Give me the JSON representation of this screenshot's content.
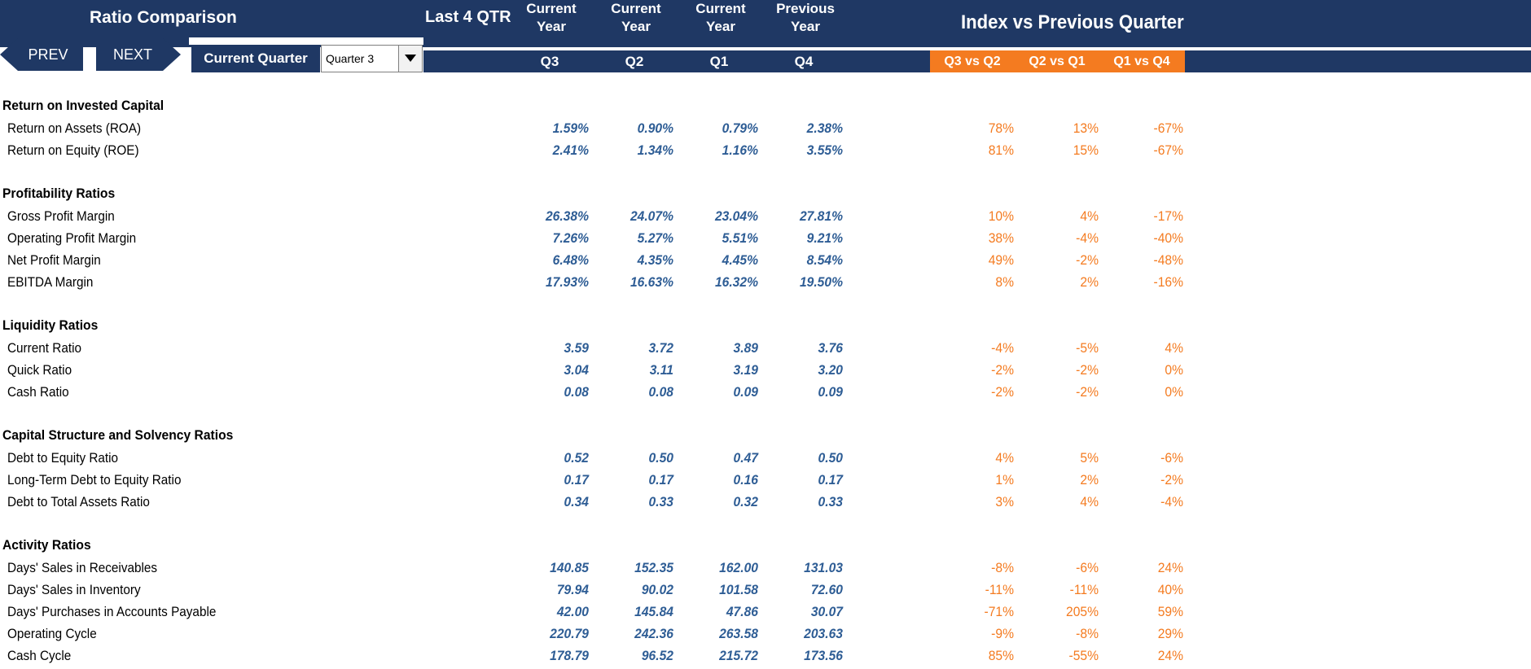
{
  "header": {
    "title": "Ratio Comparison",
    "last4": "Last 4 QTR",
    "col_heads": [
      {
        "line1": "Current",
        "line2": "Year"
      },
      {
        "line1": "Current",
        "line2": "Year"
      },
      {
        "line1": "Current",
        "line2": "Year"
      },
      {
        "line1": "Previous",
        "line2": "Year"
      }
    ],
    "quarters": [
      "Q3",
      "Q2",
      "Q1",
      "Q4"
    ],
    "index_title": "Index vs Previous Quarter",
    "index_heads": [
      "Q3 vs Q2",
      "Q2 vs Q1",
      "Q1 vs Q4"
    ]
  },
  "nav": {
    "prev_label": "PREV",
    "next_label": "NEXT",
    "current_quarter_label": "Current Quarter",
    "quarter_select_value": "Quarter 3"
  },
  "colors": {
    "navy": "#1f3864",
    "orange": "#f47b20",
    "value_blue": "#2e5d95"
  },
  "sections": [
    {
      "title": "Return on Invested Capital",
      "rows": [
        {
          "label": "Return on Assets (ROA)",
          "values": [
            "1.59%",
            "0.90%",
            "0.79%",
            "2.38%"
          ],
          "index": [
            "78%",
            "13%",
            "-67%"
          ]
        },
        {
          "label": "Return on Equity (ROE)",
          "values": [
            "2.41%",
            "1.34%",
            "1.16%",
            "3.55%"
          ],
          "index": [
            "81%",
            "15%",
            "-67%"
          ]
        }
      ]
    },
    {
      "title": "Profitability Ratios",
      "rows": [
        {
          "label": "Gross Profit Margin",
          "values": [
            "26.38%",
            "24.07%",
            "23.04%",
            "27.81%"
          ],
          "index": [
            "10%",
            "4%",
            "-17%"
          ]
        },
        {
          "label": "Operating Profit Margin",
          "values": [
            "7.26%",
            "5.27%",
            "5.51%",
            "9.21%"
          ],
          "index": [
            "38%",
            "-4%",
            "-40%"
          ]
        },
        {
          "label": "Net Profit Margin",
          "values": [
            "6.48%",
            "4.35%",
            "4.45%",
            "8.54%"
          ],
          "index": [
            "49%",
            "-2%",
            "-48%"
          ]
        },
        {
          "label": "EBITDA Margin",
          "values": [
            "17.93%",
            "16.63%",
            "16.32%",
            "19.50%"
          ],
          "index": [
            "8%",
            "2%",
            "-16%"
          ]
        }
      ]
    },
    {
      "title": "Liquidity Ratios",
      "rows": [
        {
          "label": "Current Ratio",
          "values": [
            "3.59",
            "3.72",
            "3.89",
            "3.76"
          ],
          "index": [
            "-4%",
            "-5%",
            "4%"
          ]
        },
        {
          "label": "Quick Ratio",
          "values": [
            "3.04",
            "3.11",
            "3.19",
            "3.20"
          ],
          "index": [
            "-2%",
            "-2%",
            "0%"
          ]
        },
        {
          "label": "Cash Ratio",
          "values": [
            "0.08",
            "0.08",
            "0.09",
            "0.09"
          ],
          "index": [
            "-2%",
            "-2%",
            "0%"
          ]
        }
      ]
    },
    {
      "title": "Capital Structure and Solvency Ratios",
      "rows": [
        {
          "label": "Debt to Equity Ratio",
          "values": [
            "0.52",
            "0.50",
            "0.47",
            "0.50"
          ],
          "index": [
            "4%",
            "5%",
            "-6%"
          ]
        },
        {
          "label": "Long-Term Debt to Equity Ratio",
          "values": [
            "0.17",
            "0.17",
            "0.16",
            "0.17"
          ],
          "index": [
            "1%",
            "2%",
            "-2%"
          ]
        },
        {
          "label": "Debt to Total Assets Ratio",
          "values": [
            "0.34",
            "0.33",
            "0.32",
            "0.33"
          ],
          "index": [
            "3%",
            "4%",
            "-4%"
          ]
        }
      ]
    },
    {
      "title": "Activity Ratios",
      "rows": [
        {
          "label": "Days' Sales in Receivables",
          "values": [
            "140.85",
            "152.35",
            "162.00",
            "131.03"
          ],
          "index": [
            "-8%",
            "-6%",
            "24%"
          ]
        },
        {
          "label": "Days' Sales in Inventory",
          "values": [
            "79.94",
            "90.02",
            "101.58",
            "72.60"
          ],
          "index": [
            "-11%",
            "-11%",
            "40%"
          ]
        },
        {
          "label": "Days' Purchases in Accounts Payable",
          "values": [
            "42.00",
            "145.84",
            "47.86",
            "30.07"
          ],
          "index": [
            "-71%",
            "205%",
            "59%"
          ]
        },
        {
          "label": "Operating Cycle",
          "values": [
            "220.79",
            "242.36",
            "263.58",
            "203.63"
          ],
          "index": [
            "-9%",
            "-8%",
            "29%"
          ]
        },
        {
          "label": "Cash Cycle",
          "values": [
            "178.79",
            "96.52",
            "215.72",
            "173.56"
          ],
          "index": [
            "85%",
            "-55%",
            "24%"
          ]
        }
      ]
    }
  ]
}
